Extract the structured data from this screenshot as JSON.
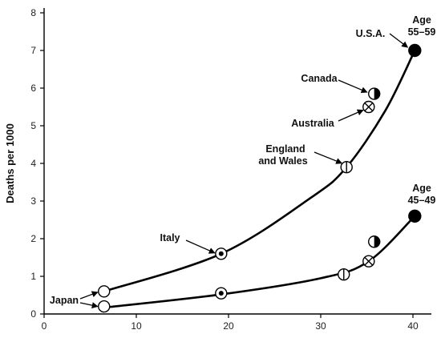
{
  "chart_data": {
    "type": "scatter",
    "title": "",
    "xlabel": "",
    "ylabel": "Deaths per 1000",
    "xlim": [
      0,
      42
    ],
    "ylim": [
      0,
      8
    ],
    "x_ticks": [
      "0",
      "10",
      "20",
      "30",
      "40"
    ],
    "y_ticks": [
      "0",
      "1",
      "2",
      "3",
      "4",
      "5",
      "6",
      "7",
      "8"
    ],
    "grid": false,
    "legend": "none",
    "series": [
      {
        "name": "Age 55–59",
        "label_lines": [
          "Age",
          "55–59"
        ],
        "curve": true,
        "points": [
          {
            "country": "Japan",
            "x": 6.5,
            "y": 0.6,
            "marker": "open"
          },
          {
            "country": "Italy",
            "x": 19.2,
            "y": 1.6,
            "marker": "dot"
          },
          {
            "country": "England and Wales",
            "x": 32.8,
            "y": 3.9,
            "marker": "vertical-line"
          },
          {
            "country": "Australia",
            "x": 35.2,
            "y": 5.5,
            "marker": "cross"
          },
          {
            "country": "Canada",
            "x": 35.8,
            "y": 5.85,
            "marker": "half"
          },
          {
            "country": "U.S.A.",
            "x": 40.2,
            "y": 7.0,
            "marker": "filled"
          }
        ]
      },
      {
        "name": "Age 45–49",
        "label_lines": [
          "Age",
          "45–49"
        ],
        "curve": true,
        "points": [
          {
            "country": "Japan",
            "x": 6.5,
            "y": 0.2,
            "marker": "open"
          },
          {
            "country": "Italy",
            "x": 19.2,
            "y": 0.55,
            "marker": "dot"
          },
          {
            "country": "England and Wales",
            "x": 32.5,
            "y": 1.05,
            "marker": "vertical-line"
          },
          {
            "country": "Australia",
            "x": 35.2,
            "y": 1.4,
            "marker": "cross"
          },
          {
            "country": "Canada",
            "x": 35.8,
            "y": 1.92,
            "marker": "half"
          },
          {
            "country": "U.S.A.",
            "x": 40.2,
            "y": 2.6,
            "marker": "filled"
          }
        ]
      }
    ],
    "annotations": [
      {
        "id": "usa",
        "lines": [
          "U.S.A."
        ]
      },
      {
        "id": "canada",
        "lines": [
          "Canada"
        ]
      },
      {
        "id": "australia",
        "lines": [
          "Australia"
        ]
      },
      {
        "id": "england",
        "lines": [
          "England",
          "and Wales"
        ]
      },
      {
        "id": "italy",
        "lines": [
          "Italy"
        ]
      },
      {
        "id": "japan",
        "lines": [
          "Japan"
        ]
      }
    ],
    "colors": {
      "line": "#000000",
      "marker_fill": "#ffffff"
    }
  }
}
